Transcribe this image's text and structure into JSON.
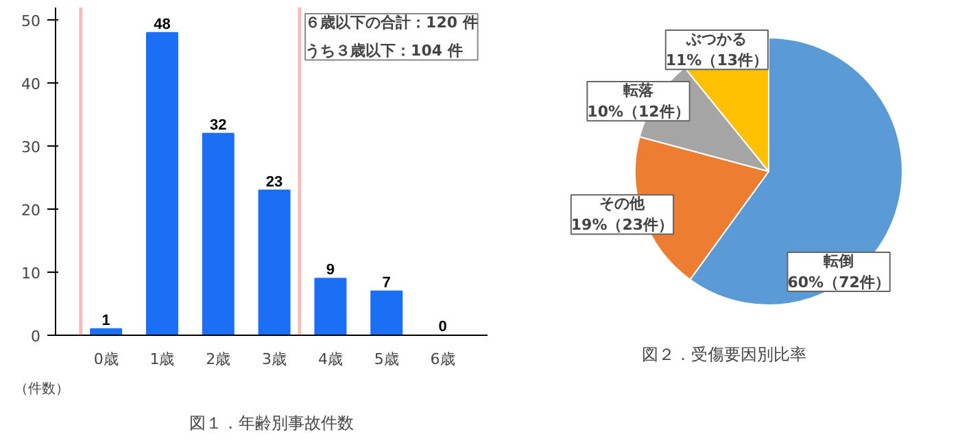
{
  "chart_data": [
    {
      "type": "bar",
      "title": "図１．年齢別事故件数",
      "categories": [
        "0歳",
        "1歳",
        "2歳",
        "3歳",
        "4歳",
        "5歳",
        "6歳"
      ],
      "values": [
        1,
        48,
        32,
        23,
        9,
        7,
        0
      ],
      "color": "#1a6ff5",
      "ylim": [
        0,
        52
      ],
      "yticks": [
        0,
        10,
        20,
        30,
        40,
        50
      ],
      "grid": false,
      "data_labels": true,
      "annotations": [
        "（件数）",
        "６歳以下の合計：120 件",
        "うち３歳以下：104 件"
      ]
    },
    {
      "type": "pie",
      "title": "図２．受傷要因別比率",
      "categories": [
        "転倒",
        "その他",
        "転落",
        "ぶつかる"
      ],
      "values": [
        72,
        23,
        12,
        13
      ],
      "colors": [
        "#5b9bd5",
        "#ed7d31",
        "#a5a5a5",
        "#ffc000"
      ],
      "value_labels": [
        "60%（72件）",
        "19%（23件）",
        "10%（12件）",
        "11%（13件）"
      ]
    }
  ]
}
